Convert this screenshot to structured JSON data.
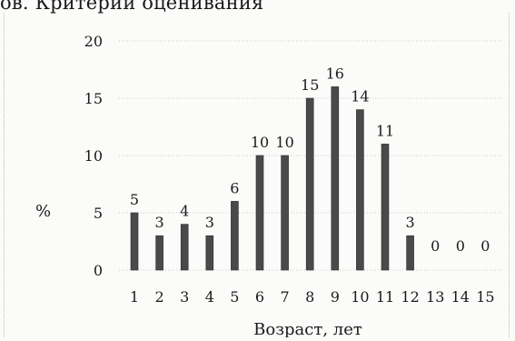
{
  "header": {
    "text": "ов. Критерии оценивания"
  },
  "chart_data": {
    "type": "bar",
    "categories": [
      "1",
      "2",
      "3",
      "4",
      "5",
      "6",
      "7",
      "8",
      "9",
      "10",
      "11",
      "12",
      "13",
      "14",
      "15"
    ],
    "values": [
      5,
      3,
      4,
      3,
      6,
      10,
      10,
      15,
      16,
      14,
      11,
      3,
      0,
      0,
      0
    ],
    "data_labels": [
      "5",
      "3",
      "4",
      "3",
      "6",
      "10",
      "10",
      "15",
      "16",
      "14",
      "11",
      "3",
      "0",
      "0",
      "0"
    ],
    "yticks": [
      0,
      5,
      10,
      15,
      20
    ],
    "ylim": [
      0,
      20
    ],
    "ylabel": "%",
    "xlabel": "Возраст, лет",
    "grid": true,
    "colors": {
      "bar": "#4a4a4a"
    }
  }
}
